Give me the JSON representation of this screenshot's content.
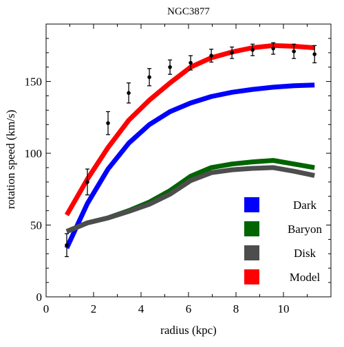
{
  "chart_data": {
    "type": "line",
    "title": "NGC3877",
    "xlabel": "radius (kpc)",
    "ylabel": "rotation speed (km/s)",
    "xlim": [
      0,
      12.0
    ],
    "ylim": [
      0,
      190
    ],
    "xticks": [
      0,
      2,
      4,
      6,
      8,
      10
    ],
    "yticks": [
      0,
      50,
      100,
      150
    ],
    "grid": false,
    "legend_position": "bottom-right",
    "series": [
      {
        "name": "Dark",
        "color": "#0000ff",
        "x": [
          0.87,
          1.74,
          2.61,
          3.48,
          4.35,
          5.22,
          6.09,
          6.96,
          7.83,
          8.7,
          9.57,
          10.44,
          11.31
        ],
        "y": [
          34,
          65,
          89,
          107,
          120,
          129,
          135,
          139.5,
          142.5,
          144.5,
          146,
          147,
          147.5
        ]
      },
      {
        "name": "Baryon",
        "color": "#006400",
        "x": [
          0.87,
          1.74,
          2.61,
          3.48,
          4.35,
          5.22,
          6.09,
          6.96,
          7.83,
          8.7,
          9.57,
          10.44,
          11.31
        ],
        "y": [
          45.5,
          51.5,
          55,
          60,
          66,
          74,
          84,
          90,
          92.5,
          94,
          95,
          92.5,
          90
        ]
      },
      {
        "name": "Disk",
        "color": "#4d4d4d",
        "x": [
          0.87,
          1.74,
          2.61,
          3.48,
          4.35,
          5.22,
          6.09,
          6.96,
          7.83,
          8.7,
          9.57,
          10.44,
          11.31
        ],
        "y": [
          45.5,
          51.5,
          55,
          59.5,
          64.5,
          71.5,
          81,
          86.5,
          88.5,
          89.5,
          90,
          87.5,
          84.5
        ]
      },
      {
        "name": "Model",
        "color": "#ff0000",
        "x": [
          0.87,
          1.74,
          2.61,
          3.48,
          4.35,
          5.22,
          6.09,
          6.96,
          7.83,
          8.7,
          9.57,
          10.44,
          11.31
        ],
        "y": [
          57,
          82,
          104,
          123,
          137,
          149,
          160,
          166.5,
          170.5,
          173.5,
          175,
          174.5,
          173.5
        ]
      }
    ],
    "observations": {
      "x": [
        0.87,
        1.74,
        2.61,
        3.48,
        4.35,
        5.22,
        6.09,
        6.96,
        7.83,
        8.7,
        9.57,
        10.44,
        11.31
      ],
      "y": [
        36,
        80,
        121,
        142,
        153,
        160,
        163,
        168,
        170,
        172,
        173,
        171,
        169
      ],
      "err": [
        8,
        9,
        8,
        7,
        6,
        5,
        5,
        4.5,
        4,
        4,
        4,
        5,
        6
      ]
    }
  }
}
